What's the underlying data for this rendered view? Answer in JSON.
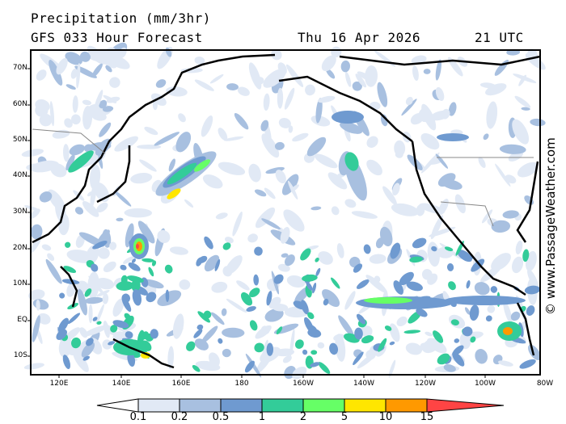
{
  "header": {
    "title": "Precipitation (mm/3hr)",
    "model": "GFS 033 Hour Forecast",
    "date": "Thu 16 Apr 2026",
    "time": "21 UTC"
  },
  "watermark": "© www.PassageWeather.com",
  "map": {
    "lat_labels": [
      "70N",
      "60N",
      "50N",
      "40N",
      "30N",
      "20N",
      "10N",
      "EQ",
      "10S"
    ],
    "lon_labels": [
      "120E",
      "140E",
      "160E",
      "180",
      "160W",
      "140W",
      "120W",
      "100W",
      "80W"
    ]
  },
  "legend": {
    "units": "mm/3hr",
    "levels": [
      "0.1",
      "0.2",
      "0.5",
      "1",
      "2",
      "5",
      "10",
      "15"
    ],
    "colors": [
      "#ffffff",
      "#e1e9f5",
      "#a8c0e0",
      "#6f9ad0",
      "#33cc99",
      "#66ff66",
      "#ffe600",
      "#ff9900",
      "#ff4444"
    ]
  }
}
